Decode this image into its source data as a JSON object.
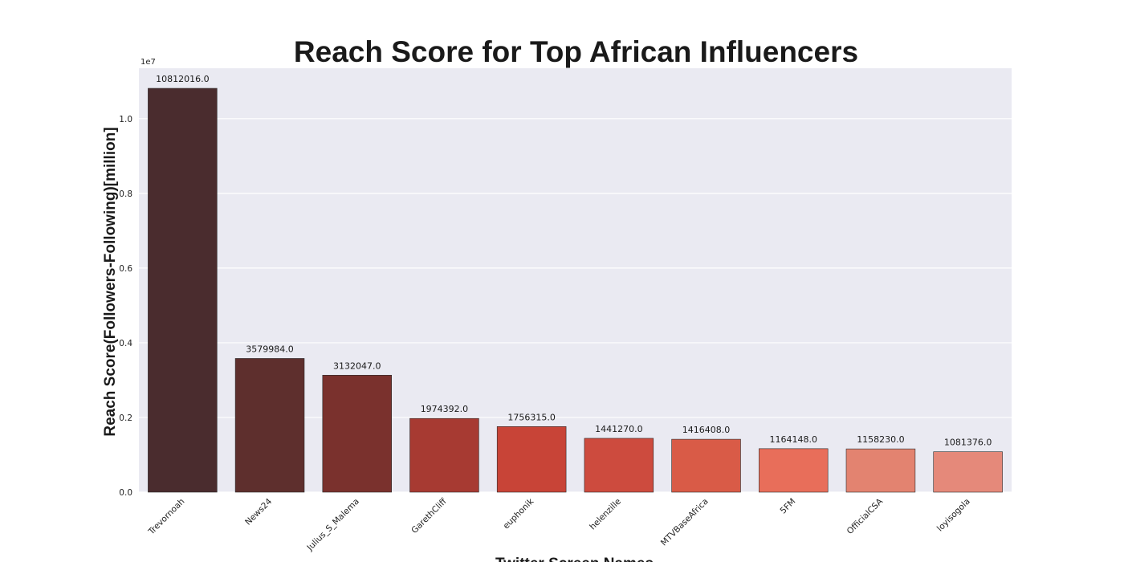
{
  "chart_data": {
    "type": "bar",
    "title": "Reach Score for Top African Influencers",
    "xlabel": "Twitter Screen Names",
    "ylabel": "Reach Score(Followers-Following)[million]",
    "y_scale_label": "1e7",
    "y_scale": 10000000,
    "ylim": [
      0,
      11350000
    ],
    "y_ticks": [
      0,
      2000000,
      4000000,
      6000000,
      8000000,
      10000000
    ],
    "y_tick_labels": [
      "0.0",
      "0.2",
      "0.4",
      "0.6",
      "0.8",
      "1.0"
    ],
    "grid": true,
    "categories": [
      "Trevornoah",
      "News24",
      "Julius_S_Malema",
      "GarethCliff",
      "euphonik",
      "helenzille",
      "MTVBaseAfrica",
      "5FM",
      "OfficialCSA",
      "loyisogola"
    ],
    "values": [
      10812016,
      3579984,
      3132047,
      1974392,
      1756315,
      1441270,
      1416408,
      1164148,
      1158230,
      1081376
    ],
    "value_labels": [
      "10812016.0",
      "3579984.0",
      "3132047.0",
      "1974392.0",
      "1756315.0",
      "1441270.0",
      "1416408.0",
      "1164148.0",
      "1158230.0",
      "1081376.0"
    ],
    "colors": [
      "#4a2c2e",
      "#5e2f2d",
      "#7a312d",
      "#a73a32",
      "#c84437",
      "#cd4b3e",
      "#d95b47",
      "#e86e5a",
      "#e38370",
      "#e5897a"
    ],
    "background_color": "#eaeaf2",
    "grid_color": "#ffffff"
  }
}
